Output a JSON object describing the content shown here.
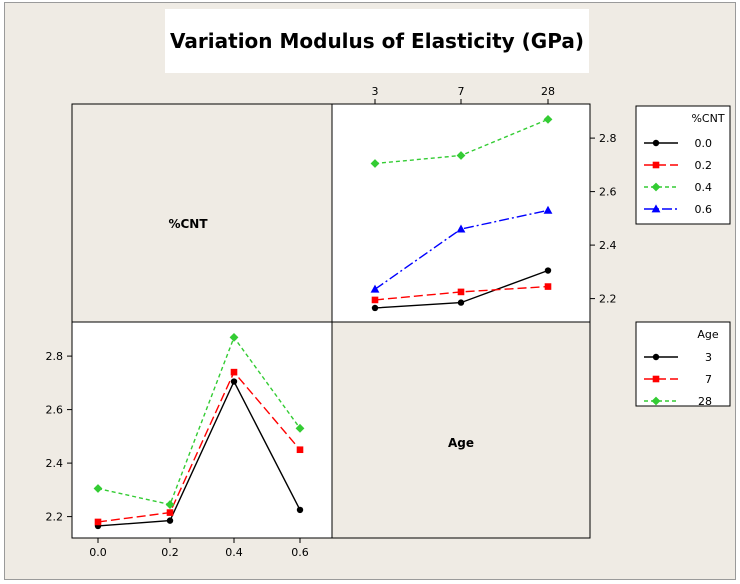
{
  "title": "Variation Modulus of Elasticity (GPa)",
  "chart_data": [
    {
      "type": "line",
      "panel": "top-right",
      "x_var": "Age",
      "group_var": "%CNT",
      "categories": [
        "3",
        "7",
        "28"
      ],
      "y_ticks": [
        "2.2",
        "2.4",
        "2.6",
        "2.8"
      ],
      "ylim": [
        2.12,
        2.92
      ],
      "axis_position": "x ticks on top, y ticks on right",
      "series": [
        {
          "name": "0.0",
          "values": [
            2.165,
            2.185,
            2.305
          ],
          "color": "#000000",
          "marker": "circle",
          "dash": "solid"
        },
        {
          "name": "0.2",
          "values": [
            2.195,
            2.225,
            2.245
          ],
          "color": "#ff0000",
          "marker": "square",
          "dash": "long-dash"
        },
        {
          "name": "0.4",
          "values": [
            2.705,
            2.735,
            2.87
          ],
          "color": "#33cc33",
          "marker": "diamond",
          "dash": "short-dash"
        },
        {
          "name": "0.6",
          "values": [
            2.235,
            2.46,
            2.53
          ],
          "color": "#0000ff",
          "marker": "triangle",
          "dash": "dash-dot"
        }
      ]
    },
    {
      "type": "line",
      "panel": "bottom-left",
      "x_var": "%CNT",
      "group_var": "Age",
      "categories": [
        "0.0",
        "0.2",
        "0.4",
        "0.6"
      ],
      "y_ticks": [
        "2.2",
        "2.4",
        "2.6",
        "2.8"
      ],
      "ylim": [
        2.12,
        2.92
      ],
      "axis_position": "x ticks on bottom, y ticks on left",
      "series": [
        {
          "name": "3",
          "values": [
            2.165,
            2.185,
            2.705,
            2.225
          ],
          "color": "#000000",
          "marker": "circle",
          "dash": "solid"
        },
        {
          "name": "7",
          "values": [
            2.18,
            2.215,
            2.74,
            2.45
          ],
          "color": "#ff0000",
          "marker": "square",
          "dash": "long-dash"
        },
        {
          "name": "28",
          "values": [
            2.305,
            2.245,
            2.87,
            2.53
          ],
          "color": "#33cc33",
          "marker": "diamond",
          "dash": "short-dash"
        }
      ]
    }
  ],
  "panel_labels": {
    "top_left": "%CNT",
    "bottom_right": "Age"
  },
  "legends": [
    {
      "title": "%CNT",
      "entries": [
        "0.0",
        "0.2",
        "0.4",
        "0.6"
      ]
    },
    {
      "title": "Age",
      "entries": [
        "3",
        "7",
        "28"
      ]
    }
  ]
}
